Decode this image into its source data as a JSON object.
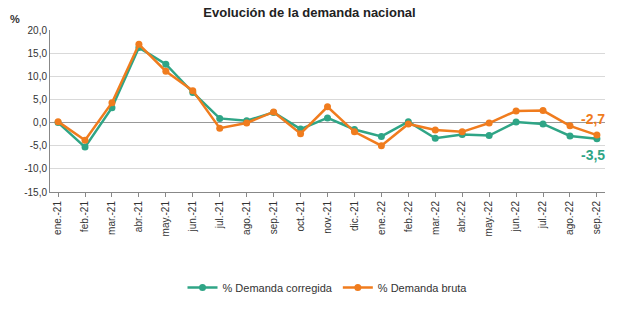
{
  "chart_data": {
    "type": "line",
    "title": "Evolución de la demanda nacional",
    "y_label": "%",
    "categories": [
      "ene.-21",
      "feb.-21",
      "mar.-21",
      "abr.-21",
      "may.-21",
      "jun.-21",
      "jul.-21",
      "ago.-21",
      "sep.-21",
      "oct.-21",
      "nov.-21",
      "dic.-21",
      "ene.-22",
      "feb.-22",
      "mar.-22",
      "abr.-22",
      "may.-22",
      "jun.-22",
      "jul.-22",
      "ago.-22",
      "sep.-22"
    ],
    "series": [
      {
        "name": "% Demanda corregida",
        "color": "#2fa586",
        "marker": "circle",
        "values": [
          0.0,
          -5.3,
          3.2,
          16.2,
          12.6,
          6.5,
          0.9,
          0.4,
          2.2,
          -1.4,
          1.0,
          -1.5,
          -3.0,
          0.2,
          -3.4,
          -2.6,
          -2.8,
          0.1,
          -0.3,
          -2.9,
          -3.5
        ]
      },
      {
        "name": "% Demanda bruta",
        "color": "#f07c1e",
        "marker": "circle",
        "values": [
          0.2,
          -3.8,
          4.3,
          16.9,
          11.1,
          6.9,
          -1.2,
          -0.1,
          2.3,
          -2.4,
          3.4,
          -2.0,
          -5.0,
          -0.3,
          -1.6,
          -2.0,
          -0.1,
          2.5,
          2.6,
          -0.7,
          -2.7
        ]
      }
    ],
    "annotations": [
      {
        "text": "-2,7",
        "x": "sep.-22",
        "y": -2.7,
        "color": "#f07c1e"
      },
      {
        "text": "-3,5",
        "x": "sep.-22",
        "y": -3.5,
        "color": "#2fa586"
      }
    ],
    "ylim": [
      -15,
      20
    ],
    "yticks": [
      {
        "value": -15,
        "label": "-15,0"
      },
      {
        "value": -10,
        "label": "-10,0"
      },
      {
        "value": -5,
        "label": "-5,0"
      },
      {
        "value": 0,
        "label": "0,0"
      },
      {
        "value": 5,
        "label": "5,0"
      },
      {
        "value": 10,
        "label": "10,0"
      },
      {
        "value": 15,
        "label": "15,0"
      },
      {
        "value": 20,
        "label": "20,0"
      }
    ],
    "grid": true,
    "legend": "bottom"
  }
}
